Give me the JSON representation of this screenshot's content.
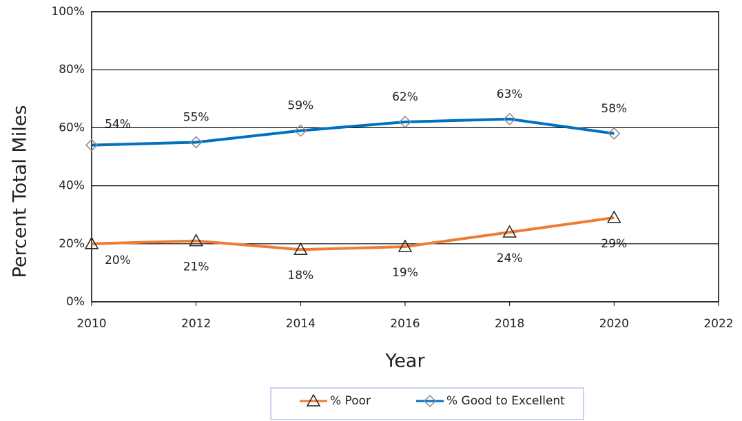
{
  "chart_data": {
    "type": "line",
    "x_label": "Year",
    "y_label": "Percent Total Miles",
    "x": [
      2010,
      2012,
      2014,
      2016,
      2018,
      2020
    ],
    "series": [
      {
        "name": "% Poor",
        "color": "#ed7d31",
        "marker": "triangle",
        "values": [
          20,
          21,
          18,
          19,
          24,
          29
        ],
        "value_labels": [
          "20%",
          "21%",
          "18%",
          "19%",
          "24%",
          "29%"
        ]
      },
      {
        "name": "% Good to Excellent",
        "color": "#0070c0",
        "marker": "diamond",
        "values": [
          54,
          55,
          59,
          62,
          63,
          58
        ],
        "value_labels": [
          "54%",
          "55%",
          "59%",
          "62%",
          "63%",
          "58%"
        ]
      }
    ],
    "xlim": [
      2010,
      2022
    ],
    "xticks": [
      2010,
      2012,
      2014,
      2016,
      2018,
      2020,
      2022
    ],
    "ylim": [
      0,
      100
    ],
    "yticks": [
      {
        "value": 0,
        "label": "0%"
      },
      {
        "value": 20,
        "label": "20%"
      },
      {
        "value": 40,
        "label": "40%"
      },
      {
        "value": 60,
        "label": "60%"
      },
      {
        "value": 80,
        "label": "80%"
      },
      {
        "value": 100,
        "label": "100%"
      }
    ],
    "grid": true,
    "legend": "bottom"
  }
}
